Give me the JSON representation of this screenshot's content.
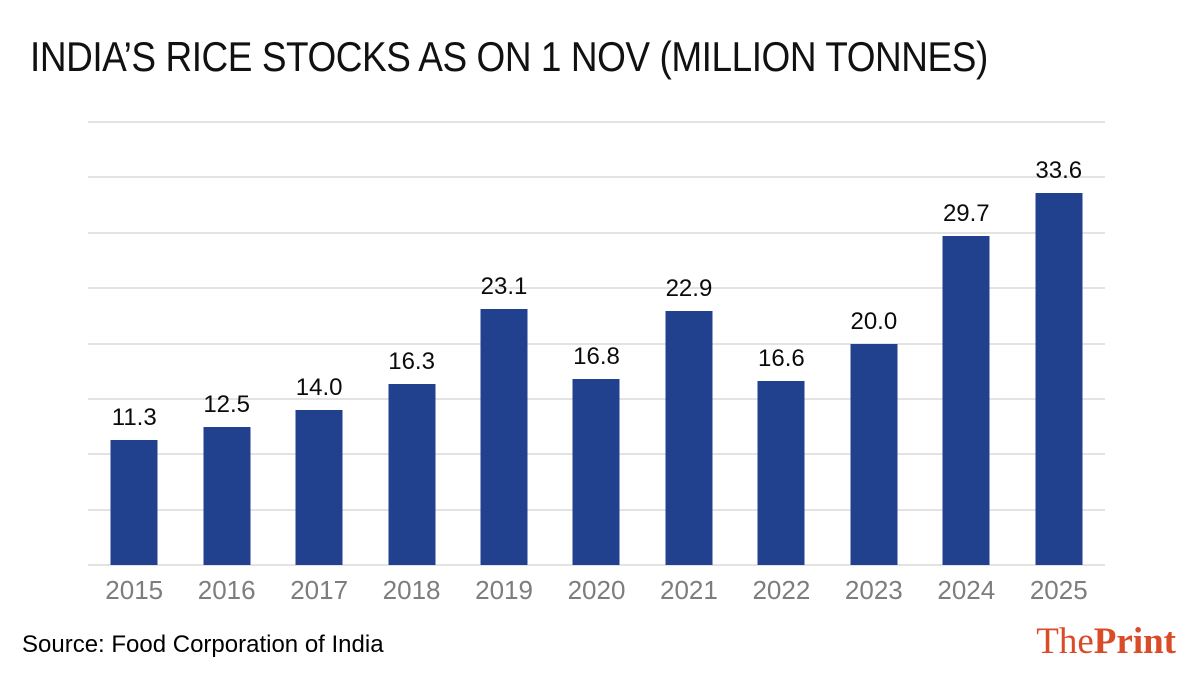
{
  "header": {
    "title": "INDIA’S RICE STOCKS AS ON 1 NOV (MILLION TONNES)"
  },
  "chart_data": {
    "type": "bar",
    "title": "INDIA’S RICE STOCKS AS ON 1 NOV (MILLION TONNES)",
    "categories": [
      "2015",
      "2016",
      "2017",
      "2018",
      "2019",
      "2020",
      "2021",
      "2022",
      "2023",
      "2024",
      "2025"
    ],
    "values": [
      11.3,
      12.5,
      14.0,
      16.3,
      23.1,
      16.8,
      22.9,
      16.6,
      20.0,
      29.7,
      33.6
    ],
    "value_labels": [
      "11.3",
      "12.5",
      "14.0",
      "16.3",
      "23.1",
      "16.8",
      "22.9",
      "16.6",
      "20.0",
      "29.7",
      "33.6"
    ],
    "xlabel": "",
    "ylabel": "",
    "ylim": [
      0,
      40
    ],
    "gridline_step": 5,
    "grid": true,
    "legend": false,
    "y_tick_labels_visible": false,
    "bar_color": "#21418E",
    "value_label_color": "#0B0B0B",
    "tick_label_color": "#7D7D7D",
    "gridline_color": "#E3E3E3"
  },
  "footer": {
    "source_label": "Source: Food Corporation of India",
    "logo": {
      "part1": "The",
      "part2": "Print",
      "color": "#DA4B28"
    }
  }
}
